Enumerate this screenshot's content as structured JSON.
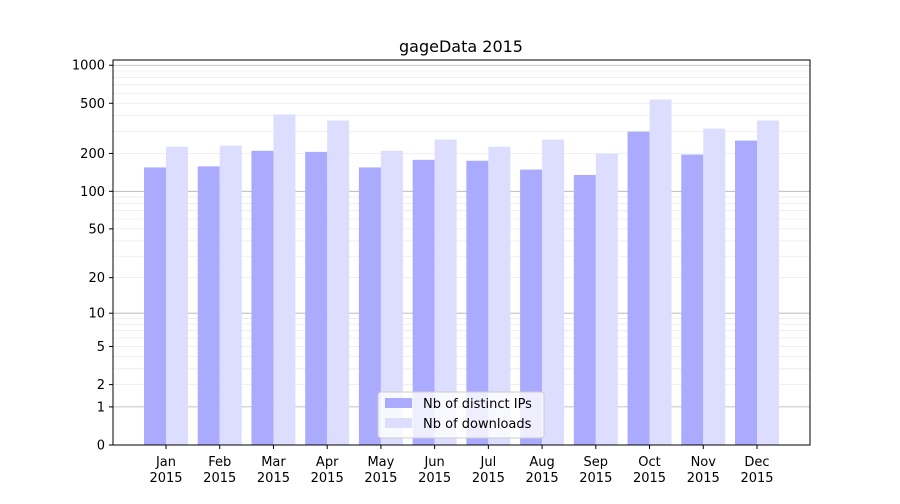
{
  "chart_data": {
    "type": "bar",
    "title": "gageData 2015",
    "xlabel": "",
    "ylabel": "",
    "yscale": "log10(1+y)",
    "ylim": [
      0,
      1100
    ],
    "yticks": [
      0,
      1,
      2,
      5,
      10,
      20,
      50,
      100,
      200,
      500,
      1000
    ],
    "categories": [
      "Jan\n2015",
      "Feb\n2015",
      "Mar\n2015",
      "Apr\n2015",
      "May\n2015",
      "Jun\n2015",
      "Jul\n2015",
      "Aug\n2015",
      "Sep\n2015",
      "Oct\n2015",
      "Nov\n2015",
      "Dec\n2015"
    ],
    "series": [
      {
        "name": "Nb of distinct IPs",
        "color": "#aaaaff",
        "values": [
          155,
          158,
          210,
          206,
          155,
          178,
          175,
          149,
          135,
          298,
          196,
          253
        ]
      },
      {
        "name": "Nb of downloads",
        "color": "#ddddff",
        "values": [
          226,
          231,
          408,
          365,
          210,
          258,
          226,
          258,
          199,
          536,
          315,
          365
        ]
      }
    ],
    "grid": true,
    "legend": "bottom-center"
  }
}
